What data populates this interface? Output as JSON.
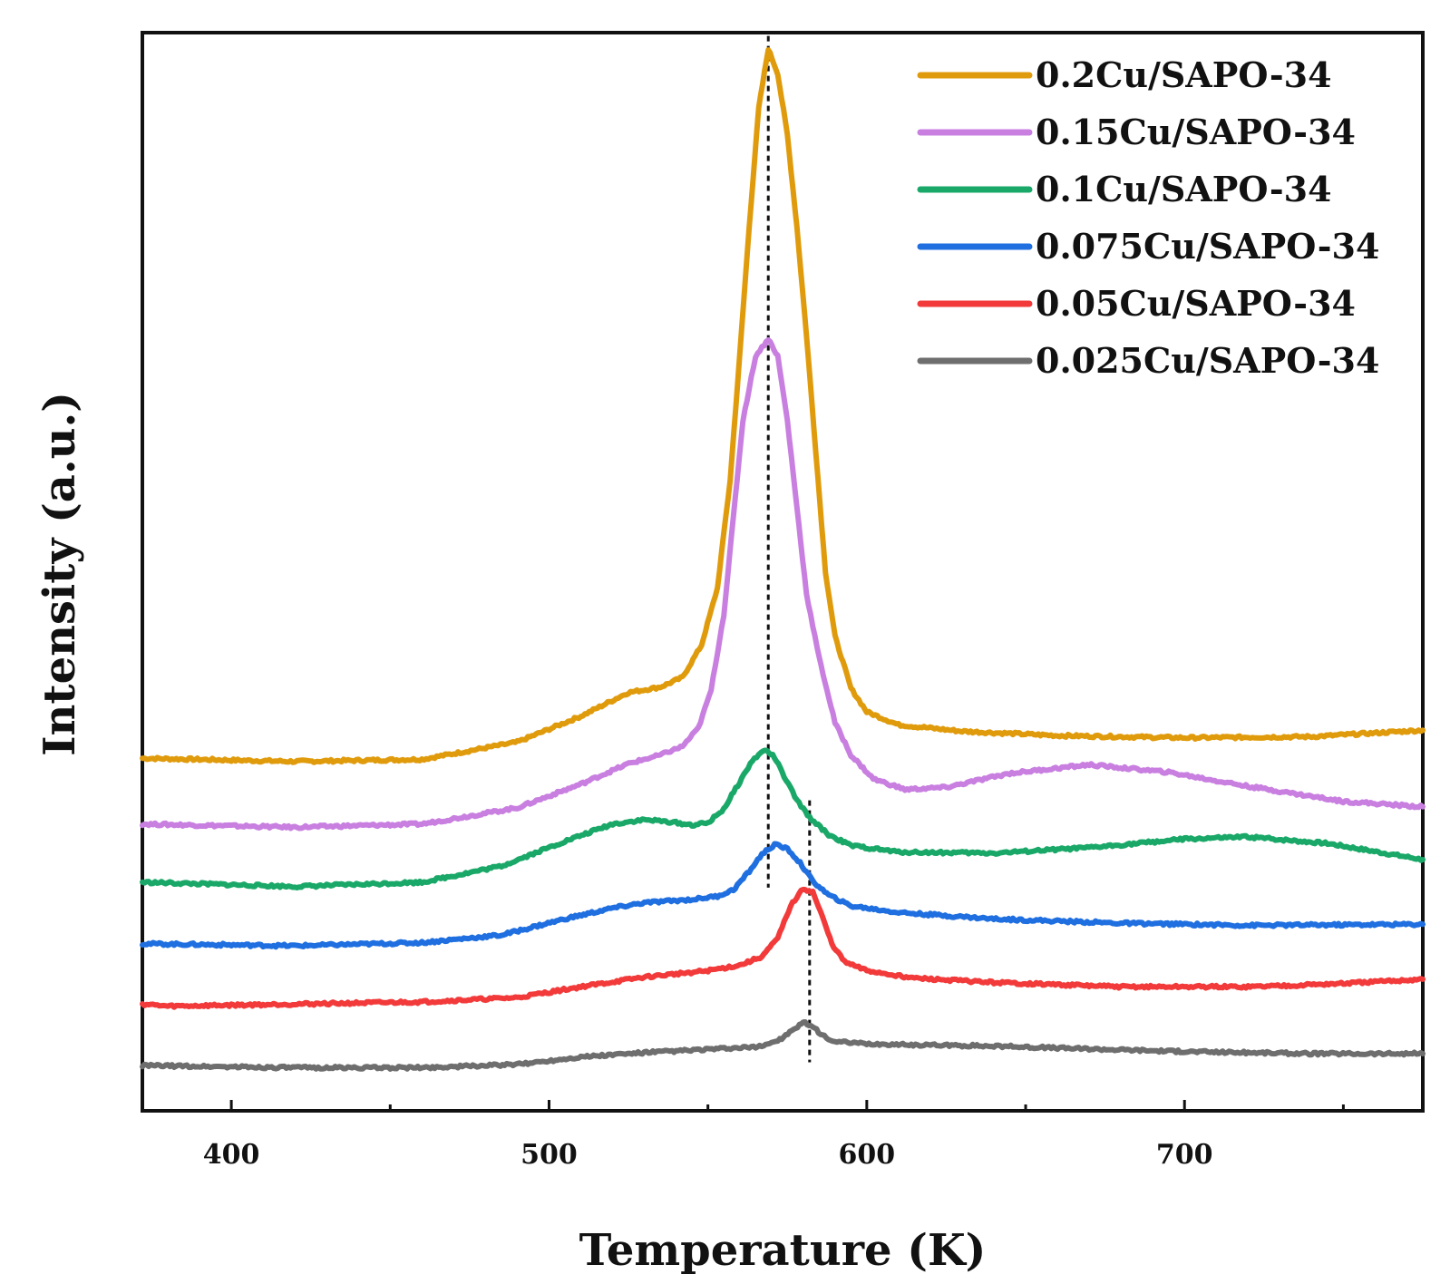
{
  "chart_data": {
    "type": "line",
    "title": "",
    "xlabel": "Temperature (K)",
    "ylabel": "Intensity (a.u.)",
    "xlim": [
      372,
      775
    ],
    "ylim": [
      0,
      1
    ],
    "xticks": [
      400,
      500,
      600,
      700
    ],
    "minor_xticks": [
      450,
      550,
      650,
      750
    ],
    "y_ticklabels": false,
    "grid": false,
    "legend": "top-right",
    "reference_lines": [
      {
        "x": 569,
        "style": "dashed",
        "range": [
          0.207,
          0.997
        ]
      },
      {
        "x": 582,
        "style": "dashed",
        "range": [
          0.045,
          0.288
        ]
      }
    ],
    "series": [
      {
        "name": "0.2Cu/SAPO-34",
        "color": "#E09B0C",
        "points": [
          [
            372,
            0.327
          ],
          [
            420,
            0.324
          ],
          [
            460,
            0.326
          ],
          [
            490,
            0.342
          ],
          [
            510,
            0.366
          ],
          [
            525,
            0.388
          ],
          [
            535,
            0.393
          ],
          [
            542,
            0.402
          ],
          [
            548,
            0.432
          ],
          [
            553,
            0.485
          ],
          [
            557,
            0.585
          ],
          [
            560,
            0.7
          ],
          [
            563,
            0.82
          ],
          [
            566,
            0.93
          ],
          [
            569,
            0.985
          ],
          [
            572,
            0.962
          ],
          [
            575,
            0.905
          ],
          [
            578,
            0.82
          ],
          [
            581,
            0.72
          ],
          [
            584,
            0.61
          ],
          [
            587,
            0.5
          ],
          [
            590,
            0.44
          ],
          [
            595,
            0.392
          ],
          [
            600,
            0.37
          ],
          [
            610,
            0.358
          ],
          [
            630,
            0.352
          ],
          [
            660,
            0.348
          ],
          [
            700,
            0.346
          ],
          [
            740,
            0.347
          ],
          [
            775,
            0.353
          ]
        ]
      },
      {
        "name": "0.15Cu/SAPO-34",
        "color": "#C87FE0",
        "points": [
          [
            372,
            0.266
          ],
          [
            420,
            0.263
          ],
          [
            460,
            0.266
          ],
          [
            490,
            0.281
          ],
          [
            510,
            0.303
          ],
          [
            525,
            0.322
          ],
          [
            535,
            0.33
          ],
          [
            542,
            0.338
          ],
          [
            547,
            0.355
          ],
          [
            551,
            0.39
          ],
          [
            555,
            0.46
          ],
          [
            558,
            0.55
          ],
          [
            561,
            0.64
          ],
          [
            565,
            0.7
          ],
          [
            569,
            0.716
          ],
          [
            572,
            0.7
          ],
          [
            575,
            0.64
          ],
          [
            578,
            0.56
          ],
          [
            581,
            0.48
          ],
          [
            585,
            0.42
          ],
          [
            590,
            0.36
          ],
          [
            595,
            0.33
          ],
          [
            602,
            0.308
          ],
          [
            612,
            0.298
          ],
          [
            625,
            0.3
          ],
          [
            645,
            0.313
          ],
          [
            670,
            0.321
          ],
          [
            695,
            0.314
          ],
          [
            720,
            0.301
          ],
          [
            750,
            0.287
          ],
          [
            775,
            0.282
          ]
        ]
      },
      {
        "name": "0.1Cu/SAPO-34",
        "color": "#1AA868",
        "points": [
          [
            372,
            0.212
          ],
          [
            420,
            0.208
          ],
          [
            460,
            0.212
          ],
          [
            485,
            0.227
          ],
          [
            505,
            0.25
          ],
          [
            520,
            0.266
          ],
          [
            530,
            0.27
          ],
          [
            538,
            0.268
          ],
          [
            545,
            0.265
          ],
          [
            550,
            0.267
          ],
          [
            555,
            0.28
          ],
          [
            560,
            0.305
          ],
          [
            564,
            0.325
          ],
          [
            568,
            0.335
          ],
          [
            571,
            0.328
          ],
          [
            574,
            0.31
          ],
          [
            578,
            0.288
          ],
          [
            582,
            0.272
          ],
          [
            588,
            0.256
          ],
          [
            595,
            0.246
          ],
          [
            610,
            0.24
          ],
          [
            640,
            0.239
          ],
          [
            670,
            0.244
          ],
          [
            700,
            0.252
          ],
          [
            720,
            0.254
          ],
          [
            745,
            0.248
          ],
          [
            775,
            0.233
          ]
        ]
      },
      {
        "name": "0.075Cu/SAPO-34",
        "color": "#1F6FE0",
        "points": [
          [
            372,
            0.155
          ],
          [
            420,
            0.153
          ],
          [
            460,
            0.156
          ],
          [
            485,
            0.163
          ],
          [
            505,
            0.178
          ],
          [
            520,
            0.188
          ],
          [
            530,
            0.193
          ],
          [
            545,
            0.196
          ],
          [
            553,
            0.199
          ],
          [
            558,
            0.205
          ],
          [
            563,
            0.222
          ],
          [
            567,
            0.238
          ],
          [
            571,
            0.247
          ],
          [
            575,
            0.243
          ],
          [
            579,
            0.23
          ],
          [
            583,
            0.213
          ],
          [
            588,
            0.2
          ],
          [
            595,
            0.19
          ],
          [
            610,
            0.184
          ],
          [
            640,
            0.178
          ],
          [
            680,
            0.174
          ],
          [
            720,
            0.172
          ],
          [
            775,
            0.173
          ]
        ]
      },
      {
        "name": "0.05Cu/SAPO-34",
        "color": "#F23A3A",
        "points": [
          [
            372,
            0.099
          ],
          [
            380,
            0.097
          ],
          [
            420,
            0.099
          ],
          [
            460,
            0.101
          ],
          [
            490,
            0.105
          ],
          [
            510,
            0.115
          ],
          [
            530,
            0.124
          ],
          [
            550,
            0.13
          ],
          [
            560,
            0.135
          ],
          [
            567,
            0.143
          ],
          [
            572,
            0.16
          ],
          [
            576,
            0.19
          ],
          [
            580,
            0.206
          ],
          [
            583,
            0.203
          ],
          [
            586,
            0.18
          ],
          [
            589,
            0.155
          ],
          [
            593,
            0.138
          ],
          [
            600,
            0.13
          ],
          [
            615,
            0.123
          ],
          [
            640,
            0.119
          ],
          [
            680,
            0.115
          ],
          [
            720,
            0.115
          ],
          [
            750,
            0.118
          ],
          [
            775,
            0.122
          ]
        ]
      },
      {
        "name": "0.025Cu/SAPO-34",
        "color": "#6E6E6E",
        "points": [
          [
            372,
            0.042
          ],
          [
            420,
            0.04
          ],
          [
            460,
            0.04
          ],
          [
            490,
            0.043
          ],
          [
            510,
            0.05
          ],
          [
            530,
            0.054
          ],
          [
            550,
            0.057
          ],
          [
            565,
            0.059
          ],
          [
            572,
            0.065
          ],
          [
            577,
            0.075
          ],
          [
            580,
            0.082
          ],
          [
            583,
            0.078
          ],
          [
            586,
            0.07
          ],
          [
            590,
            0.064
          ],
          [
            600,
            0.062
          ],
          [
            640,
            0.06
          ],
          [
            700,
            0.055
          ],
          [
            740,
            0.053
          ],
          [
            775,
            0.053
          ]
        ]
      }
    ]
  }
}
